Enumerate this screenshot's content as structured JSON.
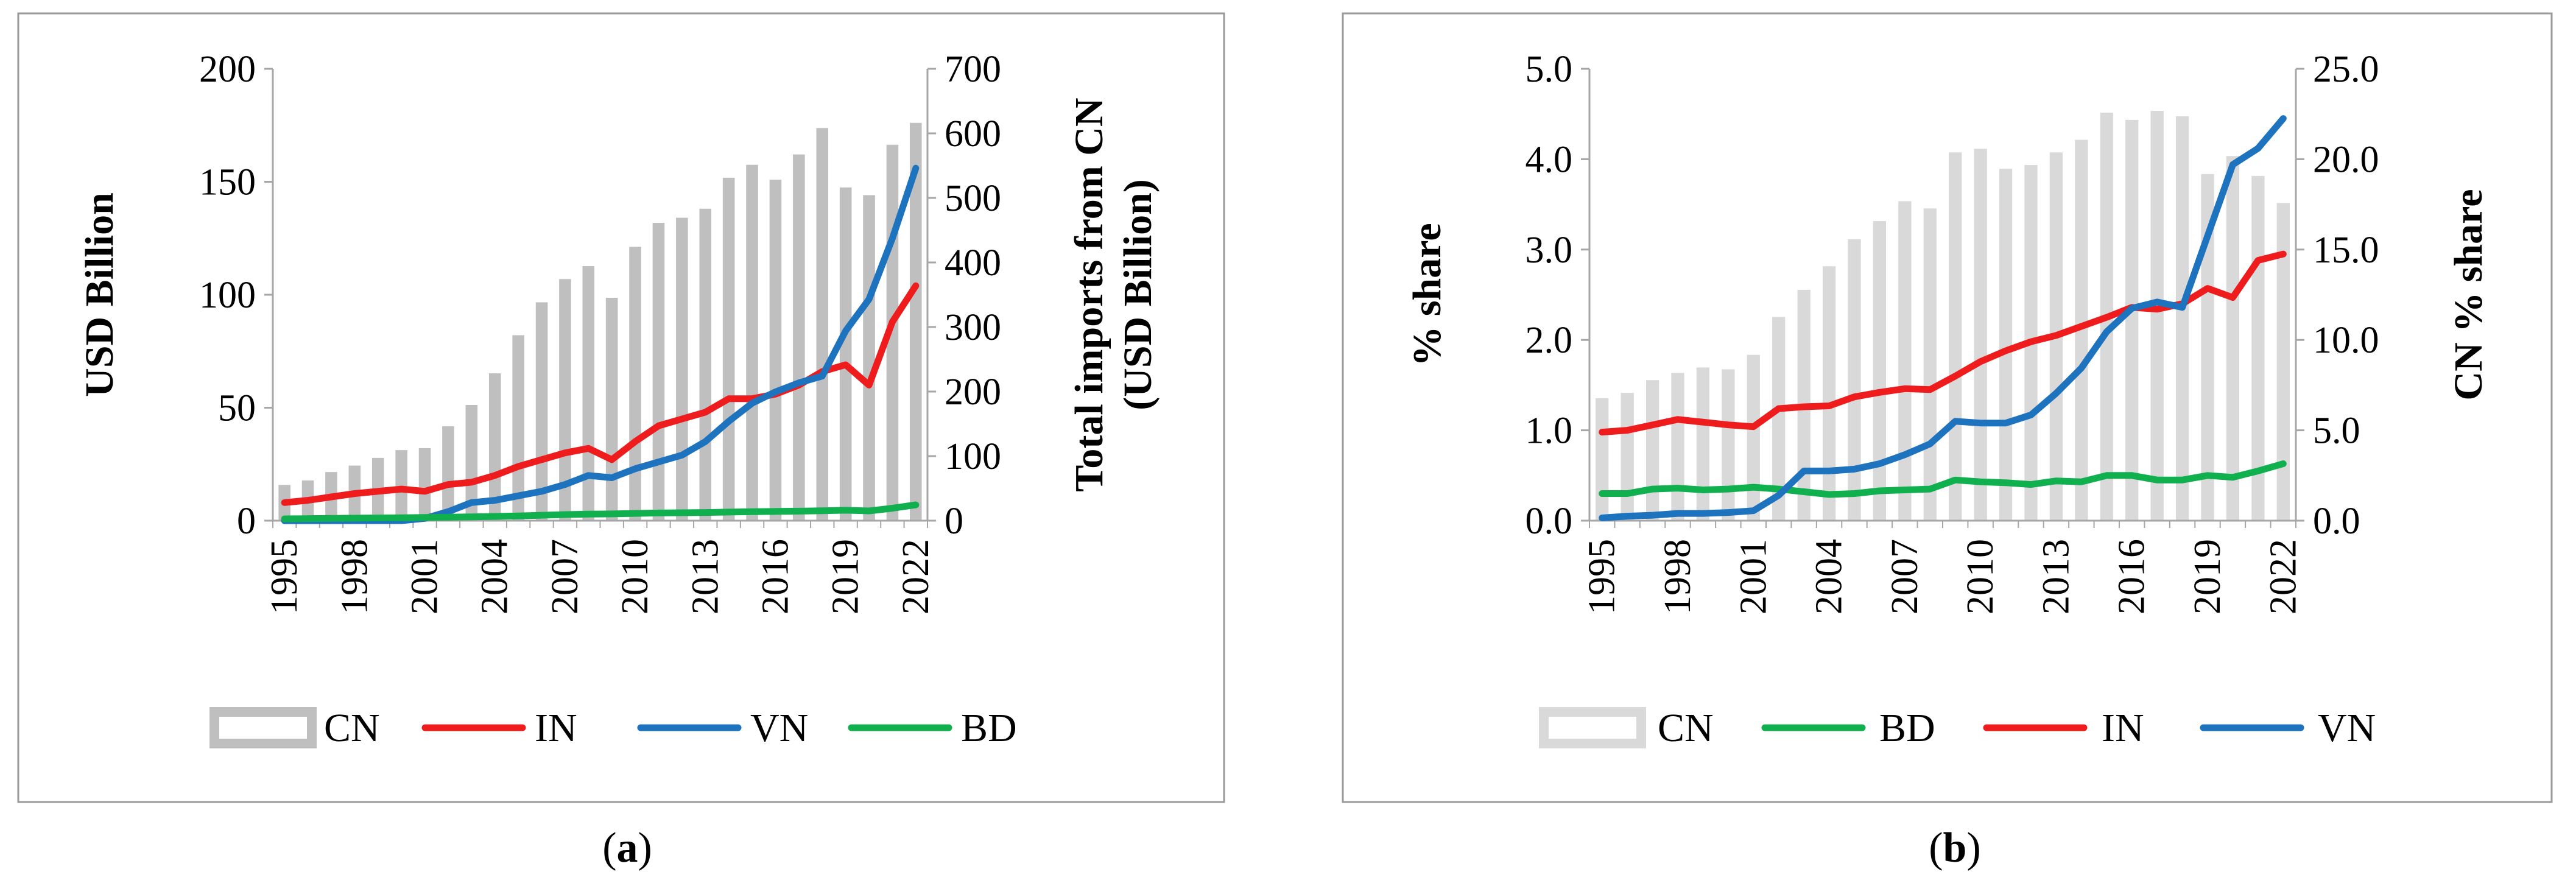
{
  "chart_data": [
    {
      "id": "a",
      "type": "bar+line",
      "caption": {
        "open": "(",
        "letter": "a",
        "close": ")"
      },
      "x": [
        "1995",
        "1996",
        "1997",
        "1998",
        "1999",
        "2000",
        "2001",
        "2002",
        "2003",
        "2004",
        "2005",
        "2006",
        "2007",
        "2008",
        "2009",
        "2010",
        "2011",
        "2012",
        "2013",
        "2014",
        "2015",
        "2016",
        "2017",
        "2018",
        "2019",
        "2020",
        "2021",
        "2022"
      ],
      "xtick_labels": [
        "1995",
        "1998",
        "2001",
        "2004",
        "2007",
        "2010",
        "2013",
        "2016",
        "2019",
        "2022"
      ],
      "ylabel": "USD Billion",
      "y2label_lines": [
        "Total imports from CN",
        "(USD Billion)"
      ],
      "ylim": [
        0,
        200
      ],
      "yticks": [
        0,
        50,
        100,
        150,
        200
      ],
      "ytick_labels": [
        "0",
        "50",
        "100",
        "150",
        "200"
      ],
      "y2lim": [
        0,
        700
      ],
      "y2ticks": [
        0,
        100,
        200,
        300,
        400,
        500,
        600,
        700
      ],
      "y2tick_labels": [
        "0",
        "100",
        "200",
        "300",
        "400",
        "500",
        "600",
        "700"
      ],
      "bars": {
        "name": "CN",
        "axis": "right",
        "color": "#bfbfbf",
        "values": [
          56,
          63,
          76,
          86,
          98,
          110,
          113,
          147,
          180,
          229,
          288,
          339,
          375,
          395,
          346,
          425,
          462,
          470,
          484,
          532,
          552,
          529,
          568,
          609,
          517,
          505,
          583,
          617
        ]
      },
      "series": [
        {
          "name": "IN",
          "color": "#ee1c1c",
          "values": [
            8,
            9,
            10.5,
            12,
            13,
            14,
            13,
            16,
            17,
            20,
            24,
            27,
            30,
            32,
            27,
            35,
            42,
            45,
            48,
            54,
            54,
            56,
            60,
            66,
            69,
            60,
            88,
            104
          ]
        },
        {
          "name": "VN",
          "color": "#1e73be",
          "values": [
            0,
            0,
            0,
            0,
            0,
            0,
            1,
            4,
            8,
            9,
            11,
            13,
            16,
            20,
            19,
            23,
            26,
            29,
            35,
            44,
            52,
            57,
            61,
            64,
            84,
            98,
            125,
            156
          ]
        },
        {
          "name": "BD",
          "color": "#11b04f",
          "values": [
            0.8,
            0.9,
            1,
            1.1,
            1.2,
            1.3,
            1.4,
            1.5,
            1.7,
            1.9,
            2.1,
            2.4,
            2.7,
            2.9,
            3,
            3.2,
            3.4,
            3.5,
            3.6,
            3.8,
            4,
            4.1,
            4.2,
            4.4,
            4.6,
            4.3,
            5.5,
            7
          ]
        }
      ],
      "legend": [
        "CN",
        "IN",
        "VN",
        "BD"
      ]
    },
    {
      "id": "b",
      "type": "bar+line",
      "caption": {
        "open": "(",
        "letter": "b",
        "close": ")"
      },
      "x": [
        "1995",
        "1996",
        "1997",
        "1998",
        "1999",
        "2000",
        "2001",
        "2002",
        "2003",
        "2004",
        "2005",
        "2006",
        "2007",
        "2008",
        "2009",
        "2010",
        "2011",
        "2012",
        "2013",
        "2014",
        "2015",
        "2016",
        "2017",
        "2018",
        "2019",
        "2020",
        "2021",
        "2022"
      ],
      "xtick_labels": [
        "1995",
        "1998",
        "2001",
        "2004",
        "2007",
        "2010",
        "2013",
        "2016",
        "2019",
        "2022"
      ],
      "ylabel": "% share",
      "y2label_lines": [
        "CN % share"
      ],
      "ylim": [
        0,
        5
      ],
      "yticks": [
        0,
        1,
        2,
        3,
        4,
        5
      ],
      "ytick_labels": [
        "0.0",
        "1.0",
        "2.0",
        "3.0",
        "4.0",
        "5.0"
      ],
      "y2lim": [
        0,
        25
      ],
      "y2ticks": [
        0,
        5,
        10,
        15,
        20,
        25
      ],
      "y2tick_labels": [
        "0.0",
        "5.0",
        "10.0",
        "15.0",
        "20.0",
        "25.0"
      ],
      "bars": {
        "name": "CN",
        "axis": "right",
        "color": "#d9d9d9",
        "values": [
          6.8,
          7.1,
          7.8,
          8.2,
          8.5,
          8.4,
          9.2,
          11.3,
          12.8,
          14.1,
          15.6,
          16.6,
          17.7,
          17.3,
          20.4,
          20.6,
          19.5,
          19.7,
          20.4,
          21.1,
          22.6,
          22.2,
          22.7,
          22.4,
          19.2,
          20.2,
          19.1,
          17.6
        ]
      },
      "series": [
        {
          "name": "BD",
          "color": "#11b04f",
          "values": [
            0.3,
            0.3,
            0.35,
            0.36,
            0.34,
            0.35,
            0.37,
            0.35,
            0.32,
            0.29,
            0.3,
            0.33,
            0.34,
            0.35,
            0.45,
            0.43,
            0.42,
            0.4,
            0.44,
            0.43,
            0.5,
            0.5,
            0.45,
            0.45,
            0.5,
            0.48,
            0.55,
            0.63
          ]
        },
        {
          "name": "IN",
          "color": "#ee1c1c",
          "values": [
            0.98,
            1,
            1.06,
            1.12,
            1.09,
            1.06,
            1.04,
            1.24,
            1.26,
            1.27,
            1.37,
            1.42,
            1.46,
            1.45,
            1.6,
            1.76,
            1.88,
            1.98,
            2.05,
            2.15,
            2.25,
            2.36,
            2.34,
            2.4,
            2.57,
            2.47,
            2.88,
            2.95
          ]
        },
        {
          "name": "VN",
          "color": "#1e73be",
          "values": [
            0.03,
            0.05,
            0.06,
            0.08,
            0.08,
            0.09,
            0.11,
            0.28,
            0.55,
            0.55,
            0.57,
            0.63,
            0.73,
            0.85,
            1.1,
            1.08,
            1.08,
            1.17,
            1.41,
            1.69,
            2.09,
            2.35,
            2.42,
            2.36,
            3.15,
            3.94,
            4.12,
            4.45
          ]
        }
      ],
      "legend": [
        "CN",
        "BD",
        "IN",
        "VN"
      ]
    }
  ]
}
